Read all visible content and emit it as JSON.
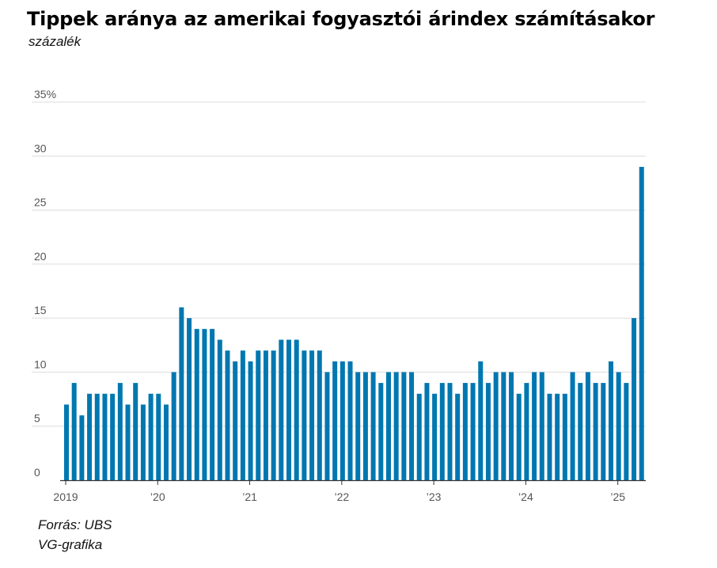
{
  "title": "Tippek aránya az amerikai fogyasztói árindex számításakor",
  "subtitle": "százalék",
  "source": "Forrás: UBS",
  "credit": "VG-grafika",
  "colors": {
    "bar": "#0077b0",
    "grid": "#dcdcdc",
    "axis": "#333333",
    "tick_label": "#555555"
  },
  "chart_data": {
    "type": "bar",
    "xlabel": "",
    "ylabel": "",
    "ylim": [
      0,
      35
    ],
    "y_ticks": [
      0,
      5,
      10,
      15,
      20,
      25,
      30,
      35
    ],
    "y_tick_labels": [
      "0",
      "5",
      "10",
      "15",
      "20",
      "25",
      "30",
      "35%"
    ],
    "grid": true,
    "x_tick_labels": [
      "2019",
      "’20",
      "’21",
      "’22",
      "’23",
      "’24",
      "’25"
    ],
    "start_month": "2019-01",
    "categories": [
      "2019-01",
      "2019-02",
      "2019-03",
      "2019-04",
      "2019-05",
      "2019-06",
      "2019-07",
      "2019-08",
      "2019-09",
      "2019-10",
      "2019-11",
      "2019-12",
      "2020-01",
      "2020-02",
      "2020-03",
      "2020-04",
      "2020-05",
      "2020-06",
      "2020-07",
      "2020-08",
      "2020-09",
      "2020-10",
      "2020-11",
      "2020-12",
      "2021-01",
      "2021-02",
      "2021-03",
      "2021-04",
      "2021-05",
      "2021-06",
      "2021-07",
      "2021-08",
      "2021-09",
      "2021-10",
      "2021-11",
      "2021-12",
      "2022-01",
      "2022-02",
      "2022-03",
      "2022-04",
      "2022-05",
      "2022-06",
      "2022-07",
      "2022-08",
      "2022-09",
      "2022-10",
      "2022-11",
      "2022-12",
      "2023-01",
      "2023-02",
      "2023-03",
      "2023-04",
      "2023-05",
      "2023-06",
      "2023-07",
      "2023-08",
      "2023-09",
      "2023-10",
      "2023-11",
      "2023-12",
      "2024-01",
      "2024-02",
      "2024-03",
      "2024-04",
      "2024-05",
      "2024-06",
      "2024-07",
      "2024-08",
      "2024-09",
      "2024-10",
      "2024-11",
      "2024-12",
      "2025-01",
      "2025-02",
      "2025-03",
      "2025-04"
    ],
    "values": [
      7,
      9,
      6,
      8,
      8,
      8,
      8,
      9,
      7,
      9,
      7,
      8,
      8,
      7,
      10,
      16,
      15,
      14,
      14,
      14,
      13,
      12,
      11,
      12,
      11,
      12,
      12,
      12,
      13,
      13,
      13,
      12,
      12,
      12,
      10,
      11,
      11,
      11,
      10,
      10,
      10,
      9,
      10,
      10,
      10,
      10,
      8,
      9,
      8,
      9,
      9,
      8,
      9,
      9,
      11,
      9,
      10,
      10,
      10,
      8,
      9,
      10,
      10,
      8,
      8,
      8,
      10,
      9,
      10,
      9,
      9,
      11,
      10,
      9,
      15,
      29
    ]
  }
}
